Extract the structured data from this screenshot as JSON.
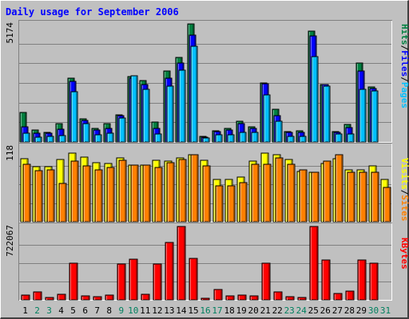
{
  "chart_data": {
    "type": "bar",
    "title": "Daily usage for September 2006",
    "categories": [
      "1",
      "2",
      "3",
      "4",
      "5",
      "6",
      "7",
      "8",
      "9",
      "10",
      "11",
      "12",
      "13",
      "14",
      "15",
      "16",
      "17",
      "18",
      "19",
      "20",
      "21",
      "22",
      "23",
      "24",
      "25",
      "26",
      "27",
      "28",
      "29",
      "30",
      "31"
    ],
    "weekend_days": [
      "2",
      "3",
      "9",
      "10",
      "16",
      "17",
      "23",
      "24",
      "30",
      "31"
    ],
    "panels": [
      {
        "id": "top",
        "max_label": "5174",
        "ylim": [
          0,
          5174
        ],
        "legend": [
          "Pages",
          "Files",
          "Hits"
        ],
        "series": [
          {
            "name": "Hits",
            "color": "#008040",
            "values": [
              1280,
              530,
              410,
              800,
              2800,
              1000,
              600,
              800,
              1200,
              2850,
              2700,
              880,
              3100,
              3700,
              5174,
              230,
              480,
              600,
              900,
              650,
              2600,
              1450,
              470,
              500,
              4850,
              2520,
              460,
              760,
              3450,
              2400,
              null
            ]
          },
          {
            "name": "Files",
            "color": "#0000ff",
            "values": [
              650,
              400,
              380,
              570,
              2650,
              960,
              520,
              600,
              1150,
              2800,
              2500,
              600,
              2800,
              3450,
              4700,
              210,
              470,
              520,
              800,
              580,
              2550,
              1150,
              420,
              420,
              4650,
              2500,
              420,
              640,
              3100,
              2350,
              null
            ]
          },
          {
            "name": "Pages",
            "color": "#00c0ff",
            "values": [
              380,
              220,
              240,
              270,
              2200,
              800,
              330,
              380,
              1050,
              2900,
              2300,
              360,
              2450,
              3150,
              4200,
              160,
              320,
              330,
              430,
              420,
              2050,
              900,
              260,
              260,
              3750,
              2450,
              350,
              340,
              2300,
              2250,
              null
            ]
          }
        ]
      },
      {
        "id": "middle",
        "max_label": "118",
        "ylim": [
          0,
          118
        ],
        "legend": [
          "Sites",
          "Visits"
        ],
        "series": [
          {
            "name": "Visits",
            "color": "#ffff00",
            "values": [
              99,
              86,
              87,
              98,
              108,
              102,
              93,
              92,
              100,
              89,
              89,
              97,
              96,
              100,
              106,
              97,
              66,
              66,
              70,
              96,
              108,
              106,
              98,
              79,
              78,
              92,
              99,
              81,
              81,
              88,
              66
            ]
          },
          {
            "name": "Sites",
            "color": "#ff8000",
            "values": [
              90,
              80,
              82,
              60,
              96,
              88,
              82,
              85,
              97,
              89,
              89,
              85,
              93,
              98,
              106,
              88,
              57,
              56,
              61,
              91,
              90,
              100,
              90,
              82,
              78,
              96,
              106,
              78,
              78,
              78,
              54
            ]
          }
        ]
      },
      {
        "id": "bottom",
        "max_label": "722067",
        "ylim": [
          0,
          722067
        ],
        "legend": [
          "KBytes"
        ],
        "series": [
          {
            "name": "KBytes",
            "color": "#ff0000",
            "values": [
              48000,
              79000,
              21000,
              54000,
              360000,
              40000,
              35000,
              44000,
              353000,
              400000,
              52000,
              353000,
              563000,
              722067,
              405000,
              13000,
              100000,
              42000,
              45000,
              42000,
              363000,
              82000,
              30000,
              23000,
              722067,
              394000,
              63000,
              83000,
              390000,
              363000,
              null
            ]
          }
        ]
      }
    ]
  }
}
